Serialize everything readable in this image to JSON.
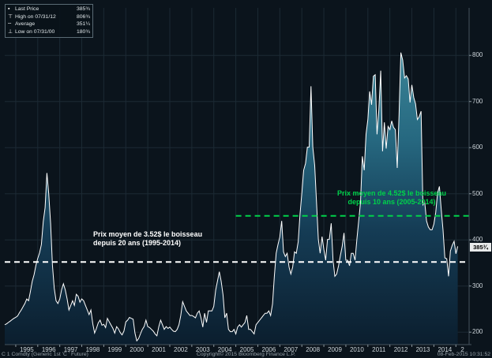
{
  "colors": {
    "background": "#0b141c",
    "grid": "#1c2a34",
    "axis_line": "#45525c",
    "tick": "#8a969e",
    "axis_text": "#ccd4d9",
    "footer_text": "#97a2aa",
    "price_line": "#ffffff",
    "area_top": "#3d8799",
    "area_upper_mid": "#266880",
    "area_lower_mid": "#153c55",
    "area_bottom": "#0b1e2e",
    "avg20_color": "#ffffff",
    "avg10_color": "#00d24a",
    "last_price_bg": "#e8eaea",
    "last_price_text": "#000000"
  },
  "legend": {
    "items": [
      {
        "icon": "last-price-swatch",
        "glyph": "▪",
        "label": "Last Price",
        "value": "385¾"
      },
      {
        "icon": "high-marker",
        "glyph": "⊤",
        "label": "High on 07/31/12",
        "value": "806¾"
      },
      {
        "icon": "average-marker",
        "glyph": "╌",
        "label": "Average",
        "value": "351¼"
      },
      {
        "icon": "low-marker",
        "glyph": "⊥",
        "label": "Low on 07/31/00",
        "value": "180¾"
      }
    ]
  },
  "annotations": {
    "avg20": {
      "line1": "Prix moyen de 3.52$ le boisseau",
      "line2": "depuis 20 ans (1995-2014)",
      "color": "#ffffff"
    },
    "avg10": {
      "line1": "Prix moyen de 4.52$ le boisseau",
      "line2": "depuis 10 ans (2005-2014)",
      "color": "#00d24a"
    }
  },
  "footer": {
    "left": "C 1 Comdty (Generic 1st 'C ' Future)",
    "center": "Copyright© 2015 Bloomberg Finance L.P.",
    "right": "08-Feb-2015 10:31:52"
  },
  "chart_data": {
    "type": "area",
    "series_label": "Last Price",
    "x_start_year": 1994.5,
    "points_per_year": 12,
    "xlim": [
      1994.5,
      2015.6
    ],
    "ylim": [
      173,
      903
    ],
    "grid": true,
    "legend_position": "top-left",
    "y_ticks": [
      200,
      300,
      400,
      500,
      600,
      700,
      800
    ],
    "y_tick_labels": [
      "200",
      "300",
      "400",
      "500",
      "600",
      "700",
      "800"
    ],
    "x_gridline_years": [
      1995,
      1996,
      1997,
      1998,
      1999,
      2000,
      2001,
      2002,
      2003,
      2004,
      2005,
      2006,
      2007,
      2008,
      2009,
      2010,
      2011,
      2012,
      2013,
      2014,
      2015
    ],
    "x_labels": [
      {
        "text": "1995",
        "x": 1995.5
      },
      {
        "text": "1996",
        "x": 1996.5
      },
      {
        "text": "1997",
        "x": 1997.5
      },
      {
        "text": "1998",
        "x": 1998.5
      },
      {
        "text": "1999",
        "x": 1999.5
      },
      {
        "text": "2000",
        "x": 2000.5
      },
      {
        "text": "2001",
        "x": 2001.5
      },
      {
        "text": "2002",
        "x": 2002.5
      },
      {
        "text": "2003",
        "x": 2003.5
      },
      {
        "text": "2004",
        "x": 2004.5
      },
      {
        "text": "2005",
        "x": 2005.5
      },
      {
        "text": "2006",
        "x": 2006.5
      },
      {
        "text": "2007",
        "x": 2007.5
      },
      {
        "text": "2008",
        "x": 2008.5
      },
      {
        "text": "2009",
        "x": 2009.5
      },
      {
        "text": "2010",
        "x": 2010.5
      },
      {
        "text": "2011",
        "x": 2011.5
      },
      {
        "text": "2012",
        "x": 2012.5
      },
      {
        "text": "2013",
        "x": 2013.5
      },
      {
        "text": "2014",
        "x": 2014.5
      },
      {
        "text": "2",
        "x": 2015.3
      }
    ],
    "series": [
      {
        "name": "Last Price",
        "values": [
          216,
          218,
          221,
          224,
          227,
          230,
          232,
          235,
          242,
          248,
          255,
          262,
          272,
          268,
          288,
          310,
          325,
          345,
          360,
          372,
          390,
          440,
          470,
          545,
          500,
          435,
          345,
          295,
          268,
          262,
          272,
          292,
          305,
          292,
          272,
          248,
          258,
          268,
          258,
          282,
          278,
          265,
          272,
          268,
          258,
          248,
          238,
          248,
          218,
          198,
          208,
          220,
          226,
          215,
          217,
          210,
          230,
          222,
          215,
          208,
          198,
          212,
          207,
          199,
          194,
          202,
          222,
          226,
          232,
          230,
          228,
          198,
          181,
          186,
          196,
          206,
          212,
          226,
          212,
          210,
          206,
          202,
          196,
          192,
          212,
          226,
          216,
          206,
          212,
          208,
          211,
          206,
          202,
          201,
          206,
          216,
          236,
          266,
          256,
          246,
          241,
          236,
          236,
          234,
          231,
          241,
          246,
          231,
          211,
          241,
          221,
          246,
          246,
          246,
          256,
          291,
          311,
          331,
          311,
          281,
          231,
          241,
          206,
          201,
          201,
          206,
          196,
          211,
          216,
          211,
          216,
          221,
          236,
          206,
          206,
          201,
          196,
          216,
          221,
          226,
          231,
          236,
          241,
          241,
          246,
          236,
          261,
          321,
          371,
          390,
          406,
          441,
          374,
          364,
          371,
          341,
          326,
          341,
          374,
          371,
          396,
          456,
          501,
          551,
          566,
          601,
          601,
          733,
          601,
          561,
          481,
          401,
          371,
          407,
          379,
          356,
          401,
          401,
          436,
          356,
          321,
          326,
          344,
          366,
          386,
          415,
          356,
          356,
          344,
          371,
          371,
          356,
          401,
          441,
          481,
          581,
          551,
          629,
          661,
          722,
          693,
          755,
          758,
          629,
          681,
          767,
          592,
          655,
          598,
          646,
          639,
          658,
          644,
          639,
          556,
          671,
          806,
          790,
          751,
          756,
          749,
          698,
          736,
          709,
          695,
          661,
          667,
          679,
          476,
          482,
          441,
          428,
          422,
          422,
          434,
          459,
          502,
          516,
          466,
          421,
          361,
          359,
          321,
          376,
          388,
          397,
          370,
          386
        ]
      }
    ],
    "reference_lines": [
      {
        "name": "avg-20yr",
        "value": 352,
        "from_year": 1994.5,
        "to_year": 2015.6,
        "color": "#ffffff",
        "style": "dashed"
      },
      {
        "name": "avg-10yr",
        "value": 452,
        "from_year": 2005.0,
        "to_year": 2015.6,
        "color": "#00d24a",
        "style": "dashed"
      }
    ],
    "stats": {
      "last_label": "385¾",
      "last": 385.75,
      "high": 806.75,
      "high_date": "07/31/12",
      "average": 351.25,
      "low": 180.75,
      "low_date": "07/31/00"
    }
  }
}
